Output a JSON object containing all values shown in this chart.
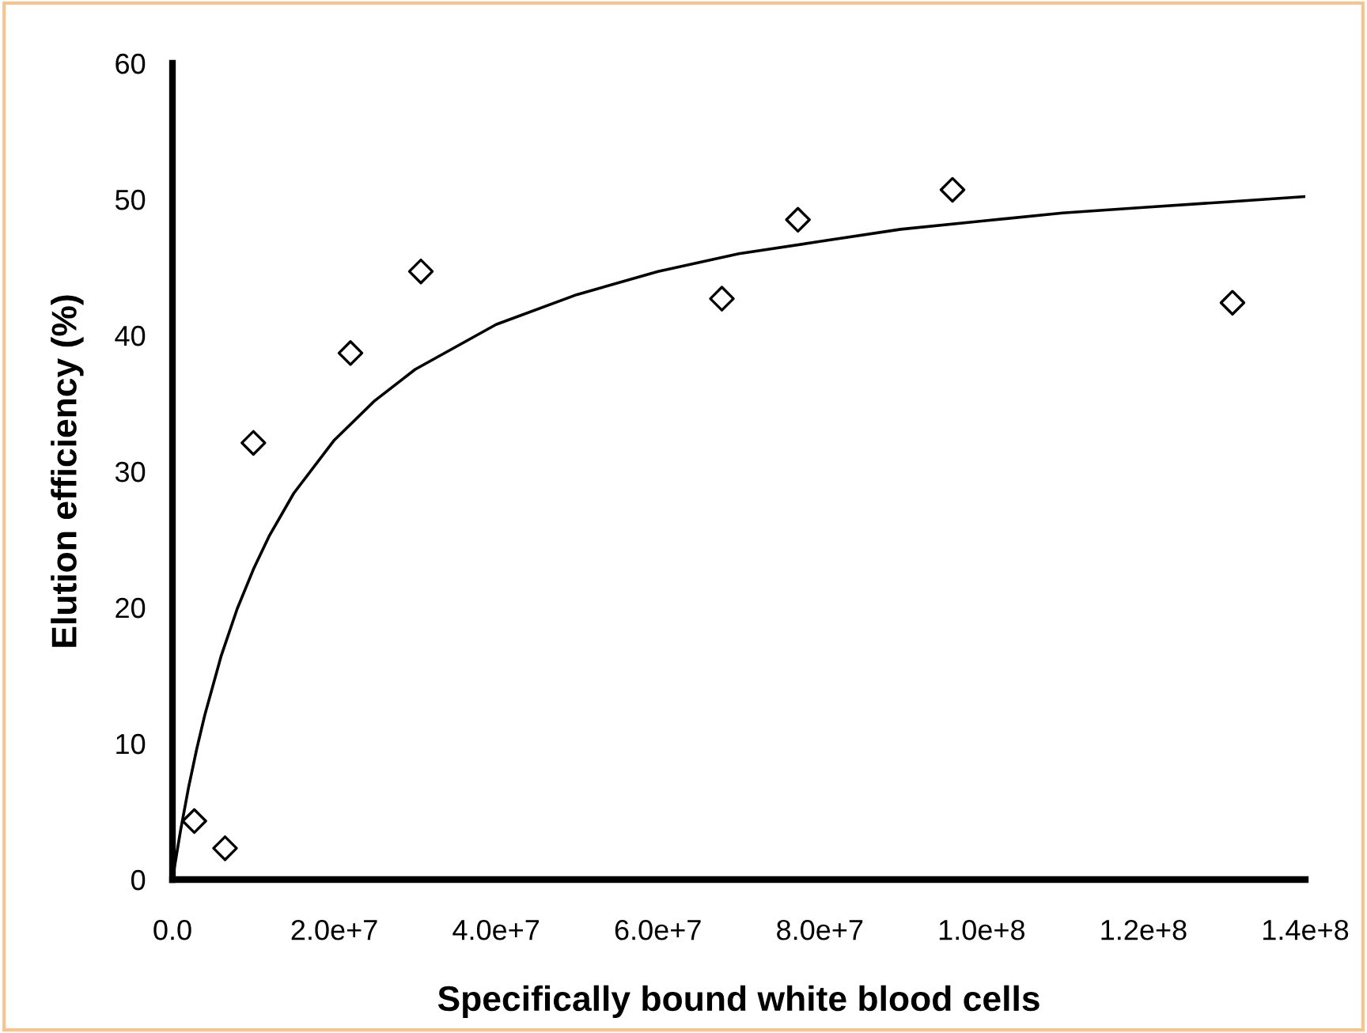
{
  "chart_data": {
    "type": "scatter",
    "xlabel": "Specifically bound white blood cells",
    "ylabel": "Elution efficiency (%)",
    "xlim": [
      0,
      140000000
    ],
    "xticks": [
      {
        "value": 0,
        "label": "0.0"
      },
      {
        "value": 20000000,
        "label": "2.0e+7"
      },
      {
        "value": 40000000,
        "label": "4.0e+7"
      },
      {
        "value": 60000000,
        "label": "6.0e+7"
      },
      {
        "value": 80000000,
        "label": "8.0e+7"
      },
      {
        "value": 100000000,
        "label": "1.0e+8"
      },
      {
        "value": 120000000,
        "label": "1.2e+8"
      },
      {
        "value": 140000000,
        "label": "1.4e+8"
      }
    ],
    "ylim": [
      0,
      60
    ],
    "yticks": [
      0,
      10,
      20,
      30,
      40,
      50,
      60
    ],
    "series": [
      {
        "marker": "diamond",
        "color": "#000000",
        "x": [
          2700000,
          6500000,
          10000000,
          22000000,
          30700000,
          67900000,
          77300000,
          96400000,
          131000000
        ],
        "values": [
          4.3,
          2.3,
          32.1,
          38.7,
          44.7,
          42.7,
          48.5,
          50.7,
          42.4
        ]
      },
      {
        "type": "line",
        "marker": "none",
        "line_style": "solid",
        "color": "#000000",
        "x": [
          0,
          1000000,
          2000000,
          3000000,
          4000000,
          6000000,
          8000000,
          10000000,
          12000000,
          15000000,
          20000000,
          25000000,
          30000000,
          40000000,
          50000000,
          60000000,
          70000000,
          80000000,
          90000000,
          100000000,
          110000000,
          120000000,
          130000000,
          140000000
        ],
        "values": [
          0,
          3.6,
          6.8,
          9.6,
          12.1,
          16.4,
          19.9,
          22.8,
          25.3,
          28.4,
          32.3,
          35.2,
          37.5,
          40.8,
          43.0,
          44.7,
          46.0,
          46.9,
          47.8,
          48.4,
          49.0,
          49.4,
          49.8,
          50.2
        ]
      }
    ]
  }
}
